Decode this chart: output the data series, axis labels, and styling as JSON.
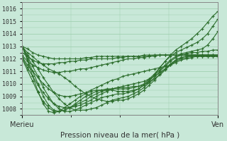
{
  "title": "",
  "xlabel": "Pression niveau de la mer( hPa )",
  "xlabels": [
    "Merieu",
    "Ven"
  ],
  "ylim": [
    1007.5,
    1016.5
  ],
  "yticks": [
    1008,
    1009,
    1010,
    1011,
    1012,
    1013,
    1014,
    1015,
    1016
  ],
  "bg_color": "#c8e8d8",
  "grid_color": "#99ccaa",
  "line_color": "#2d6e2d",
  "figsize": [
    3.2,
    2.0
  ],
  "dpi": 100,
  "lines": [
    [
      1013.0,
      1012.8,
      1012.5,
      1012.3,
      1012.2,
      1012.1,
      1012.0,
      1012.0,
      1012.0,
      1012.0,
      1012.0,
      1012.0,
      1012.1,
      1012.1,
      1012.2,
      1012.2,
      1012.2,
      1012.2,
      1012.2,
      1012.2,
      1012.2,
      1012.2,
      1012.2,
      1012.2,
      1012.2,
      1012.3,
      1012.3,
      1012.3,
      1012.3,
      1012.3,
      1012.3,
      1012.3,
      1012.3,
      1012.3,
      1012.3,
      1012.3,
      1012.3,
      1012.3
    ],
    [
      1012.5,
      1012.2,
      1011.9,
      1011.7,
      1011.6,
      1011.6,
      1011.6,
      1011.7,
      1011.7,
      1011.8,
      1011.8,
      1011.9,
      1011.9,
      1012.0,
      1012.0,
      1012.0,
      1012.0,
      1012.0,
      1012.1,
      1012.1,
      1012.2,
      1012.2,
      1012.2,
      1012.3,
      1012.3,
      1012.3,
      1012.3,
      1012.3,
      1012.3,
      1012.3,
      1012.3,
      1012.3,
      1012.3,
      1012.3,
      1012.3,
      1012.3,
      1012.3,
      1012.3
    ],
    [
      1012.3,
      1011.8,
      1011.5,
      1011.3,
      1011.1,
      1011.0,
      1010.9,
      1010.9,
      1011.0,
      1011.0,
      1011.1,
      1011.2,
      1011.2,
      1011.3,
      1011.4,
      1011.5,
      1011.6,
      1011.7,
      1011.8,
      1011.9,
      1012.0,
      1012.0,
      1012.1,
      1012.1,
      1012.2,
      1012.2,
      1012.3,
      1012.3,
      1012.3,
      1012.3,
      1012.3,
      1012.3,
      1012.3,
      1012.3,
      1012.3,
      1012.3,
      1012.3,
      1012.2
    ],
    [
      1012.2,
      1011.5,
      1011.0,
      1010.5,
      1010.0,
      1009.6,
      1009.3,
      1009.1,
      1009.0,
      1009.0,
      1009.1,
      1009.2,
      1009.3,
      1009.5,
      1009.7,
      1009.9,
      1010.1,
      1010.3,
      1010.4,
      1010.6,
      1010.7,
      1010.8,
      1010.9,
      1011.0,
      1011.1,
      1011.2,
      1011.3,
      1011.4,
      1011.5,
      1011.7,
      1011.9,
      1012.0,
      1012.1,
      1012.2,
      1012.2,
      1012.2,
      1012.2,
      1012.2
    ],
    [
      1012.1,
      1011.3,
      1010.6,
      1009.9,
      1009.3,
      1008.8,
      1008.4,
      1008.2,
      1008.1,
      1008.1,
      1008.2,
      1008.3,
      1008.5,
      1008.7,
      1009.0,
      1009.2,
      1009.4,
      1009.6,
      1009.7,
      1009.8,
      1009.9,
      1010.0,
      1010.1,
      1010.2,
      1010.4,
      1010.6,
      1010.9,
      1011.2,
      1011.5,
      1011.8,
      1012.0,
      1012.1,
      1012.2,
      1012.2,
      1012.2,
      1012.2,
      1012.2,
      1012.2
    ],
    [
      1012.0,
      1011.1,
      1010.2,
      1009.3,
      1008.6,
      1008.1,
      1007.8,
      1007.8,
      1007.9,
      1008.1,
      1008.3,
      1008.5,
      1008.7,
      1009.0,
      1009.2,
      1009.4,
      1009.5,
      1009.6,
      1009.7,
      1009.7,
      1009.7,
      1009.8,
      1009.8,
      1009.9,
      1010.1,
      1010.4,
      1010.7,
      1011.1,
      1011.5,
      1011.9,
      1012.1,
      1012.2,
      1012.2,
      1012.2,
      1012.2,
      1012.2,
      1012.2,
      1012.2
    ],
    [
      1013.0,
      1012.5,
      1012.2,
      1011.8,
      1011.5,
      1011.2,
      1011.0,
      1010.8,
      1010.5,
      1010.2,
      1009.8,
      1009.5,
      1009.2,
      1009.0,
      1008.8,
      1008.7,
      1008.6,
      1008.6,
      1008.7,
      1008.7,
      1008.8,
      1009.0,
      1009.2,
      1009.5,
      1009.9,
      1010.3,
      1010.8,
      1011.2,
      1011.6,
      1011.9,
      1012.1,
      1012.2,
      1012.3,
      1012.3,
      1012.3,
      1012.3,
      1012.3,
      1012.3
    ],
    [
      1013.0,
      1012.3,
      1011.8,
      1011.2,
      1010.5,
      1009.9,
      1009.3,
      1008.8,
      1008.4,
      1008.1,
      1007.9,
      1007.9,
      1007.9,
      1008.0,
      1008.1,
      1008.3,
      1008.5,
      1008.7,
      1008.8,
      1008.9,
      1009.0,
      1009.2,
      1009.4,
      1009.7,
      1010.1,
      1010.5,
      1011.0,
      1011.4,
      1011.8,
      1012.1,
      1012.3,
      1012.4,
      1012.5,
      1012.5,
      1012.6,
      1012.6,
      1012.7,
      1012.7
    ],
    [
      1013.0,
      1012.2,
      1011.4,
      1010.6,
      1009.7,
      1009.0,
      1008.4,
      1008.0,
      1007.8,
      1007.8,
      1007.9,
      1008.1,
      1008.3,
      1008.5,
      1008.7,
      1008.9,
      1009.0,
      1009.1,
      1009.2,
      1009.2,
      1009.3,
      1009.4,
      1009.6,
      1009.9,
      1010.3,
      1010.7,
      1011.1,
      1011.5,
      1011.9,
      1012.2,
      1012.4,
      1012.5,
      1012.6,
      1012.7,
      1012.8,
      1013.1,
      1013.6,
      1014.2
    ],
    [
      1013.0,
      1012.0,
      1011.0,
      1010.0,
      1009.0,
      1008.3,
      1007.9,
      1007.8,
      1007.9,
      1008.1,
      1008.4,
      1008.7,
      1009.0,
      1009.2,
      1009.4,
      1009.5,
      1009.6,
      1009.6,
      1009.6,
      1009.6,
      1009.6,
      1009.7,
      1009.8,
      1010.0,
      1010.4,
      1010.8,
      1011.3,
      1011.8,
      1012.2,
      1012.5,
      1012.7,
      1012.9,
      1013.1,
      1013.3,
      1013.6,
      1014.0,
      1014.6,
      1015.2
    ],
    [
      1013.0,
      1011.9,
      1010.6,
      1009.4,
      1008.4,
      1007.8,
      1007.7,
      1007.8,
      1008.1,
      1008.4,
      1008.7,
      1009.0,
      1009.2,
      1009.4,
      1009.5,
      1009.5,
      1009.5,
      1009.5,
      1009.4,
      1009.4,
      1009.4,
      1009.5,
      1009.6,
      1009.9,
      1010.2,
      1010.7,
      1011.3,
      1011.8,
      1012.3,
      1012.7,
      1013.0,
      1013.3,
      1013.6,
      1014.0,
      1014.4,
      1014.9,
      1015.4,
      1015.8
    ]
  ]
}
